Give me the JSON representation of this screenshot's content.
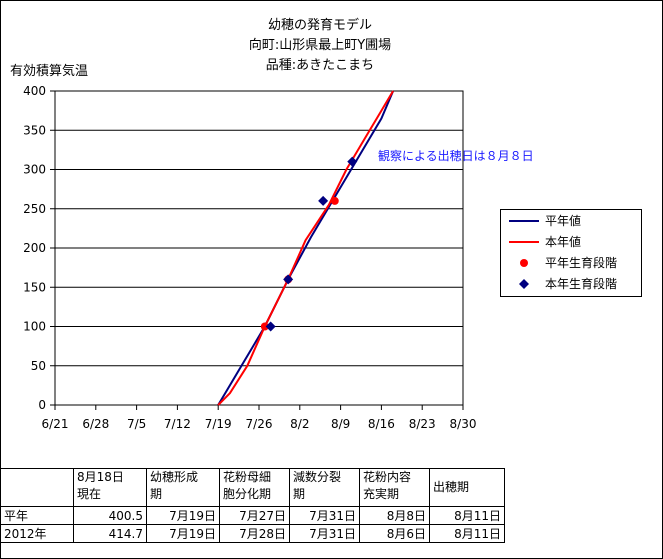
{
  "chart_data": {
    "type": "line",
    "title_lines": [
      "幼穂の発育モデル",
      "向町:山形県最上町Y圃場",
      "品種:あきたこまち"
    ],
    "ylabel": "有効積算気温",
    "xlabel": "",
    "ylim": [
      0,
      400
    ],
    "yticks": [
      0,
      50,
      100,
      150,
      200,
      250,
      300,
      350,
      400
    ],
    "xlim": [
      "6/21",
      "8/30"
    ],
    "xticks": [
      "6/21",
      "6/28",
      "7/5",
      "7/12",
      "7/19",
      "7/26",
      "8/2",
      "8/9",
      "8/16",
      "8/23",
      "8/30"
    ],
    "grid": "horizontal",
    "legend_position": "right",
    "series": [
      {
        "name": "平年値",
        "kind": "line",
        "color": "#000080",
        "x": [
          "7/19",
          "7/23",
          "7/27",
          "7/31",
          "8/4",
          "8/8",
          "8/12",
          "8/16",
          "8/18"
        ],
        "y": [
          0,
          50,
          100,
          160,
          215,
          265,
          315,
          365,
          400
        ]
      },
      {
        "name": "本年値",
        "kind": "line",
        "color": "#ff0000",
        "x": [
          "7/19",
          "7/21",
          "7/24",
          "7/27",
          "7/31",
          "8/3",
          "8/7",
          "8/10",
          "8/14",
          "8/18"
        ],
        "y": [
          0,
          15,
          50,
          100,
          160,
          210,
          255,
          300,
          350,
          400
        ]
      },
      {
        "name": "平年生育段階",
        "kind": "marker",
        "shape": "circle",
        "color": "#ff0000",
        "x": [
          "7/27",
          "7/31",
          "8/8"
        ],
        "y": [
          100,
          160,
          260
        ]
      },
      {
        "name": "本年生育段階",
        "kind": "marker",
        "shape": "diamond",
        "color": "#000080",
        "x": [
          "7/28",
          "7/31",
          "8/6",
          "8/11"
        ],
        "y": [
          100,
          160,
          260,
          310
        ]
      }
    ],
    "annotation": "観察による出穂日は８月８日"
  },
  "table": {
    "headers": [
      [
        "",
        ""
      ],
      [
        "8月18日",
        "現在"
      ],
      [
        "幼穂形成",
        "期"
      ],
      [
        "花粉母細",
        "胞分化期"
      ],
      [
        "減数分裂",
        "期"
      ],
      [
        "花粉内容",
        "充実期"
      ],
      [
        "出穂期",
        ""
      ]
    ],
    "rows": [
      [
        "平年",
        "400.5",
        "7月19日",
        "7月27日",
        "7月31日",
        "8月8日",
        "8月11日"
      ],
      [
        "2012年",
        "414.7",
        "7月19日",
        "7月28日",
        "7月31日",
        "8月6日",
        "8月11日"
      ]
    ]
  }
}
